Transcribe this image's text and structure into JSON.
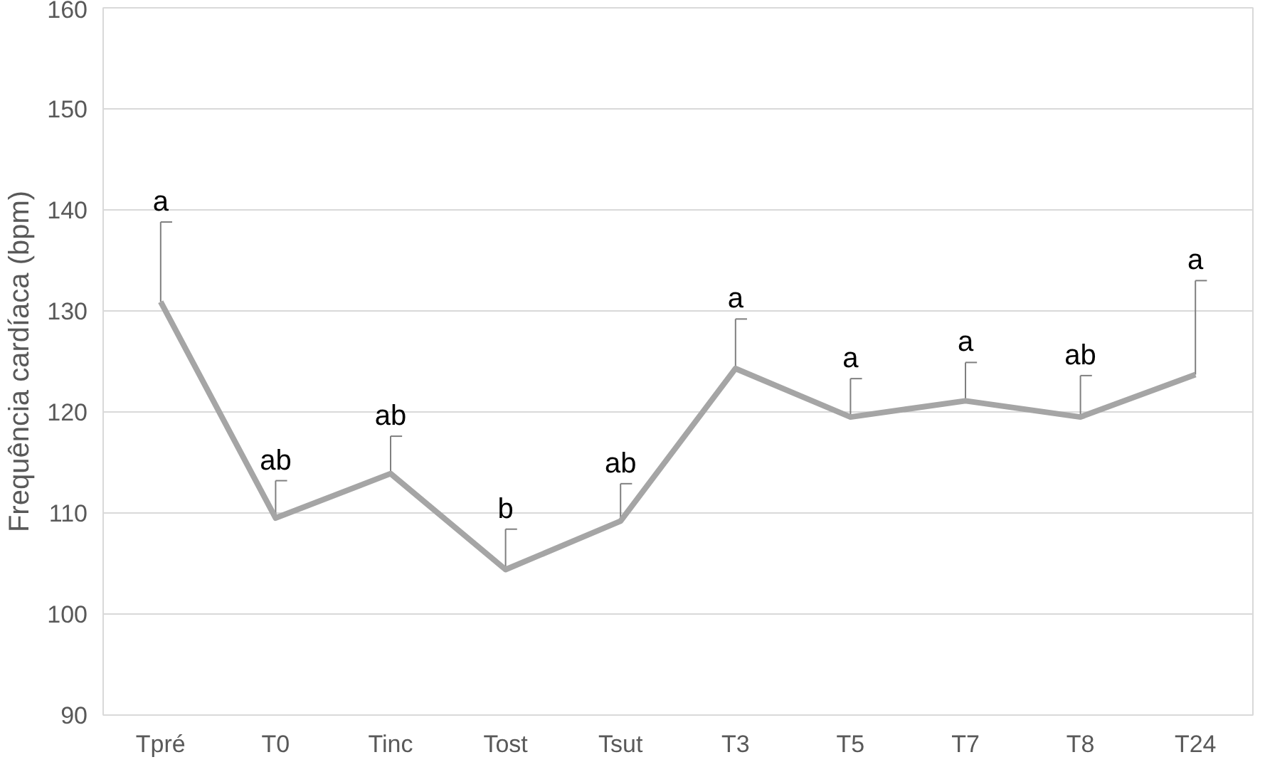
{
  "chart_data": {
    "type": "line",
    "ylabel": "Frequência cardíaca (bpm)",
    "categories": [
      "Tpré",
      "T0",
      "Tinc",
      "Tost",
      "Tsut",
      "T3",
      "T5",
      "T7",
      "T8",
      "T24"
    ],
    "series": [
      {
        "color": "#a5a5a5",
        "values": [
          130.9,
          109.5,
          113.9,
          104.4,
          109.2,
          124.3,
          119.5,
          121.1,
          119.5,
          123.7
        ],
        "errors": [
          [
            130.9,
            138.8
          ],
          [
            109.5,
            113.2
          ],
          [
            113.9,
            117.6
          ],
          [
            104.4,
            108.4
          ],
          [
            109.2,
            112.9
          ],
          [
            124.3,
            129.2
          ],
          [
            119.5,
            123.3
          ],
          [
            121.1,
            124.9
          ],
          [
            119.5,
            123.6
          ],
          [
            123.7,
            133.0
          ]
        ]
      }
    ],
    "ylim": [
      90,
      160
    ],
    "yticks": [
      90,
      100,
      110,
      120,
      130,
      140,
      150,
      160
    ],
    "grid": "y",
    "marker": "none",
    "line_style": "solid",
    "annotations": [
      "a",
      "ab",
      "ab",
      "b",
      "ab",
      "a",
      "a",
      "a",
      "ab",
      "a"
    ]
  }
}
